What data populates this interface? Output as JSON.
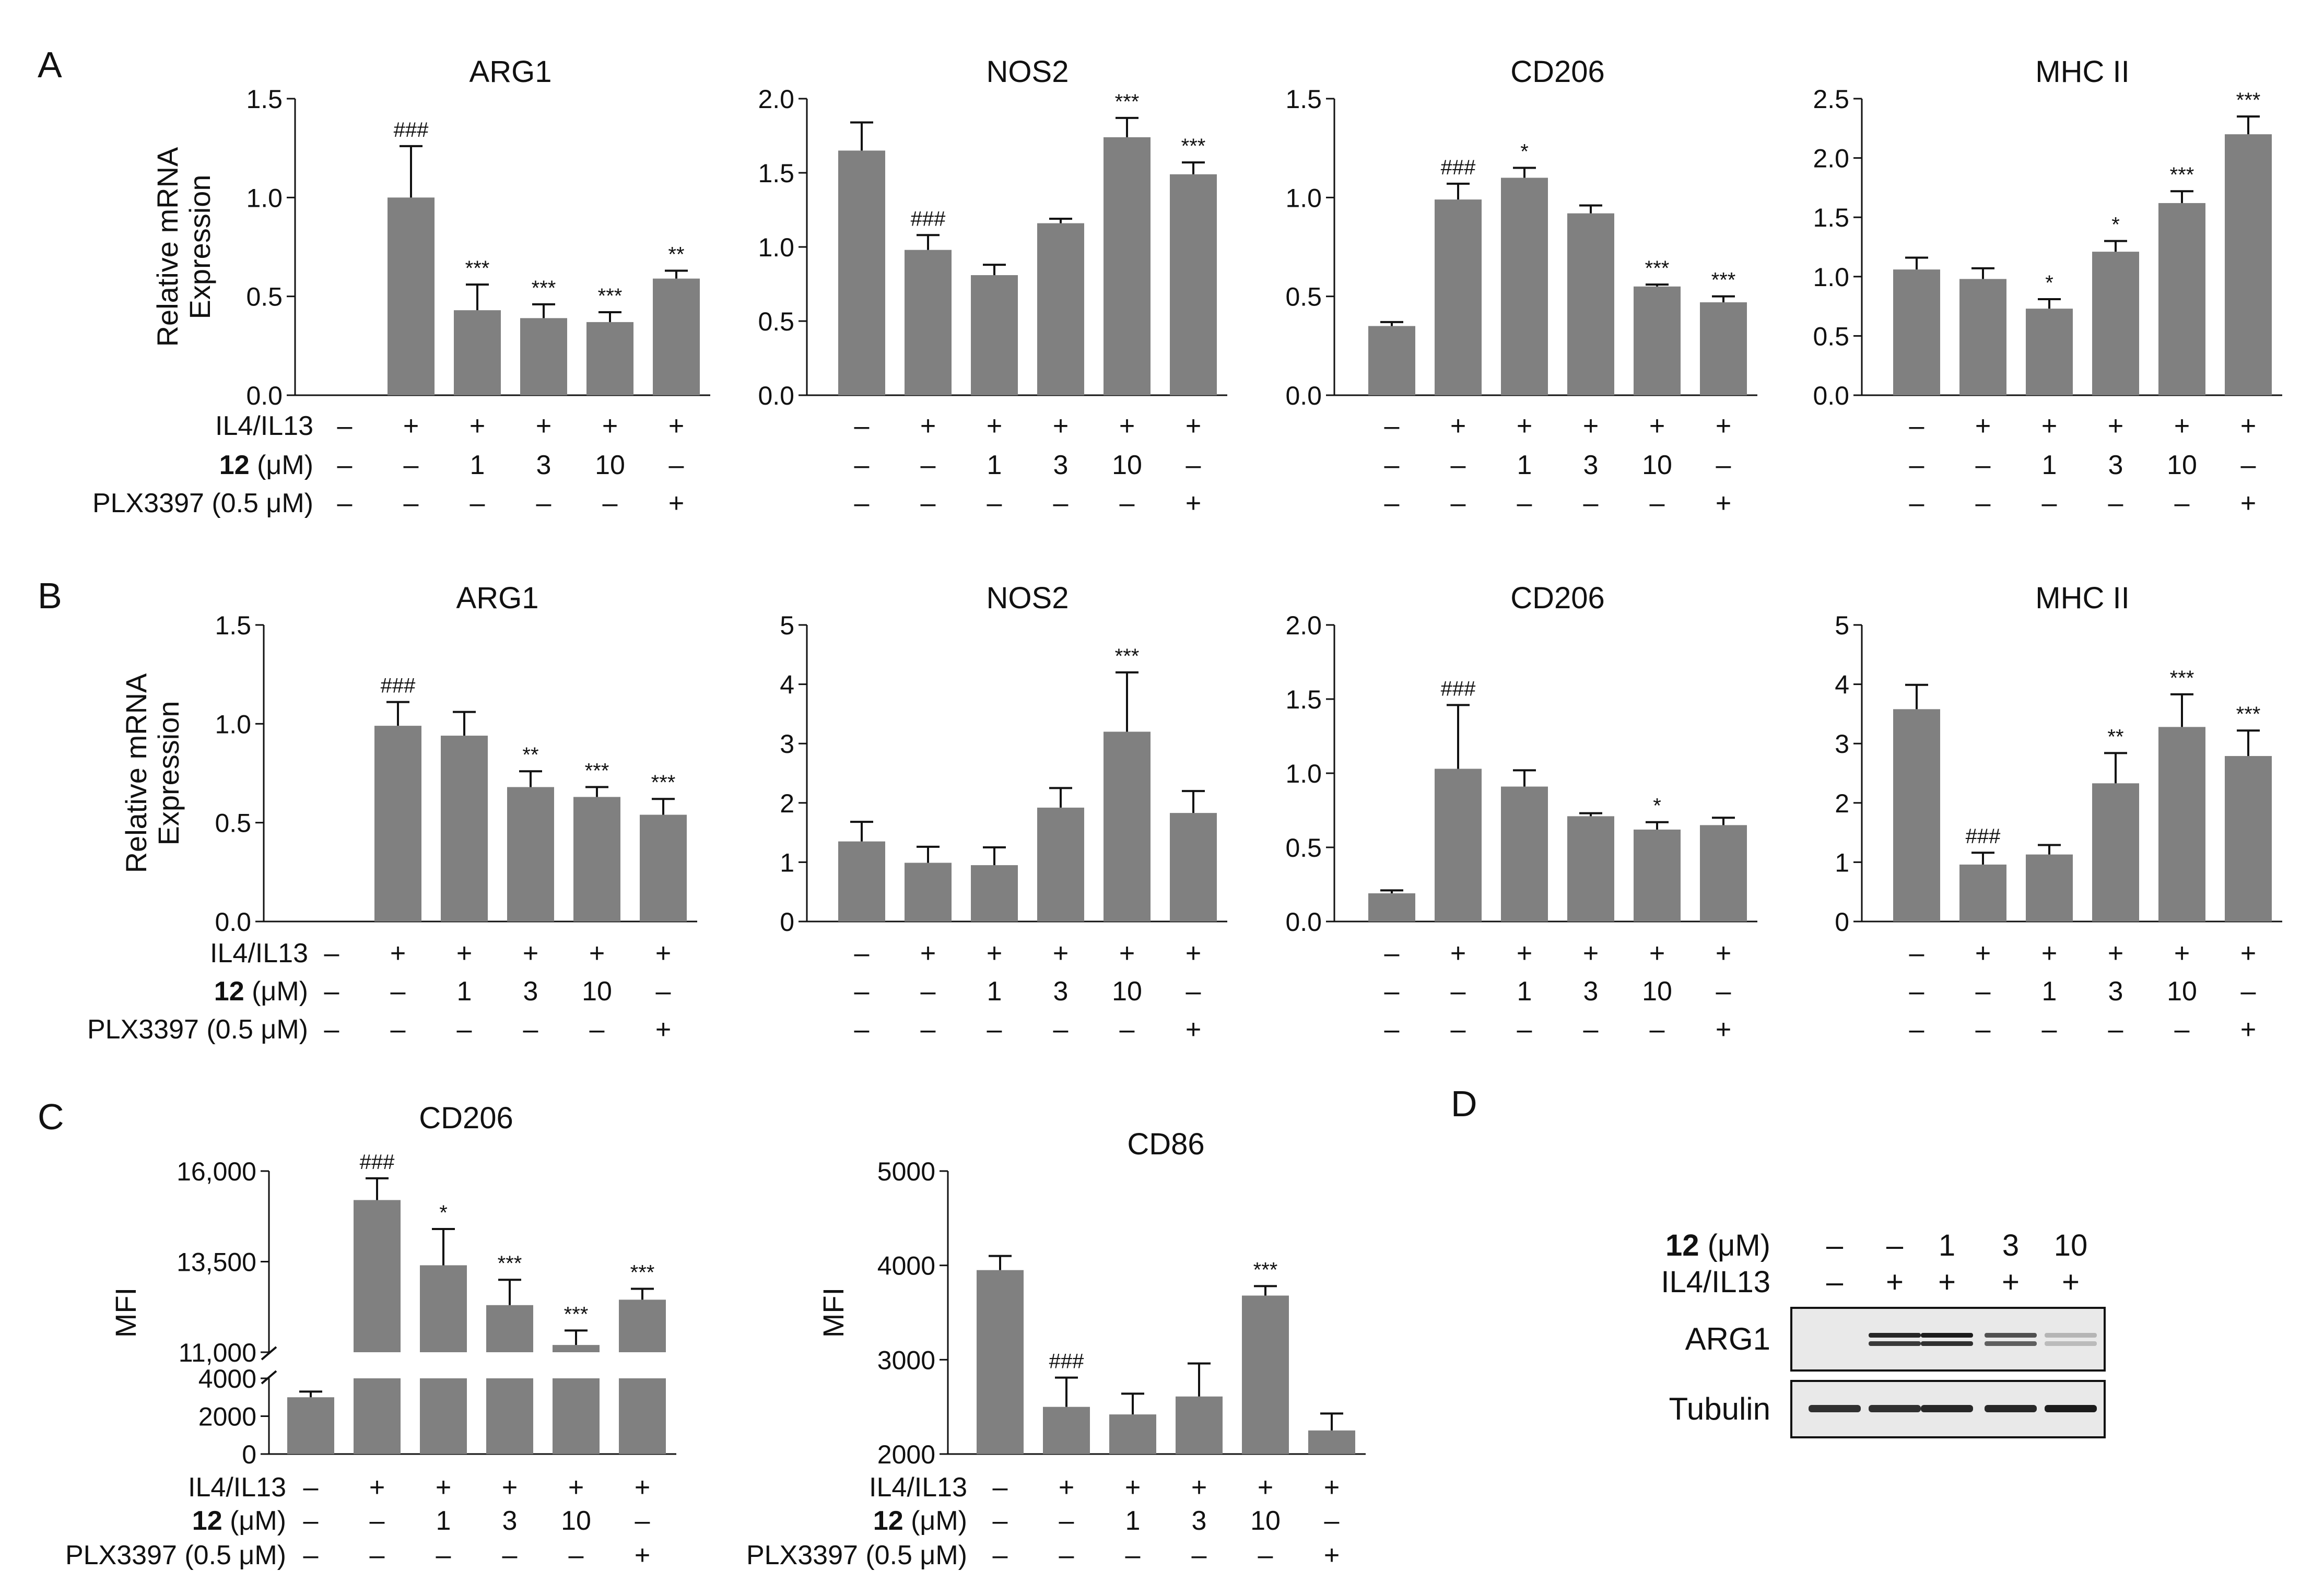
{
  "colors": {
    "bar": "#808080",
    "ink": "#111111",
    "blot_bg": "#e9e9e9",
    "band": "#1c1c1c"
  },
  "panel_labels": [
    "A",
    "B",
    "C",
    "D"
  ],
  "treatment_labels": {
    "il4": "IL4/IL13",
    "cmpd_num": "12",
    "cmpd_unit": " (μM)",
    "plx": "PLX3397 (0.5 μM)"
  },
  "conditions": {
    "il4": [
      "–",
      "+",
      "+",
      "+",
      "+",
      "+"
    ],
    "cmpd": [
      "–",
      "–",
      "1",
      "3",
      "10",
      "–"
    ],
    "plx": [
      "–",
      "–",
      "–",
      "–",
      "–",
      "+"
    ]
  },
  "chart_data": [
    {
      "id": "A1",
      "type": "bar",
      "title": "ARG1",
      "ylabel": [
        "Relative mRNA",
        "Expression"
      ],
      "ylim": [
        0,
        1.5
      ],
      "yticks": [
        "0.0",
        "0.5",
        "1.0",
        "1.5"
      ],
      "tickvals": [
        0,
        0.5,
        1.0,
        1.5
      ],
      "values": [
        0,
        1.0,
        0.43,
        0.39,
        0.37,
        0.59
      ],
      "errors": [
        0,
        0.26,
        0.13,
        0.07,
        0.05,
        0.04
      ],
      "sig": [
        "",
        "###",
        "***",
        "***",
        "***",
        "**"
      ]
    },
    {
      "id": "A2",
      "type": "bar",
      "title": "NOS2",
      "ylabel": [],
      "ylim": [
        0,
        2.0
      ],
      "yticks": [
        "0.0",
        "0.5",
        "1.0",
        "1.5",
        "2.0"
      ],
      "tickvals": [
        0,
        0.5,
        1.0,
        1.5,
        2.0
      ],
      "values": [
        1.65,
        0.98,
        0.81,
        1.16,
        1.74,
        1.49
      ],
      "errors": [
        0.19,
        0.1,
        0.07,
        0.03,
        0.13,
        0.08
      ],
      "sig": [
        "",
        "###",
        "",
        "",
        "***",
        "***"
      ]
    },
    {
      "id": "A3",
      "type": "bar",
      "title": "CD206",
      "ylabel": [],
      "ylim": [
        0,
        1.5
      ],
      "yticks": [
        "0.0",
        "0.5",
        "1.0",
        "1.5"
      ],
      "tickvals": [
        0,
        0.5,
        1.0,
        1.5
      ],
      "values": [
        0.35,
        0.99,
        1.1,
        0.92,
        0.55,
        0.47
      ],
      "errors": [
        0.02,
        0.08,
        0.05,
        0.04,
        0.01,
        0.03
      ],
      "sig": [
        "",
        "###",
        "*",
        "",
        "***",
        "***"
      ]
    },
    {
      "id": "A4",
      "type": "bar",
      "title": "MHC II",
      "ylabel": [],
      "ylim": [
        0,
        2.5
      ],
      "yticks": [
        "0.0",
        "0.5",
        "1.0",
        "1.5",
        "2.0",
        "2.5"
      ],
      "tickvals": [
        0,
        0.5,
        1.0,
        1.5,
        2.0,
        2.5
      ],
      "values": [
        1.06,
        0.98,
        0.73,
        1.21,
        1.62,
        2.2
      ],
      "errors": [
        0.1,
        0.09,
        0.08,
        0.09,
        0.1,
        0.15
      ],
      "sig": [
        "",
        "",
        "*",
        "*",
        "***",
        "***"
      ]
    },
    {
      "id": "B1",
      "type": "bar",
      "title": "ARG1",
      "ylabel": [
        "Relative mRNA",
        "Expression"
      ],
      "ylim": [
        0,
        1.5
      ],
      "yticks": [
        "0.0",
        "0.5",
        "1.0",
        "1.5"
      ],
      "tickvals": [
        0,
        0.5,
        1.0,
        1.5
      ],
      "values": [
        0,
        0.99,
        0.94,
        0.68,
        0.63,
        0.54
      ],
      "errors": [
        0,
        0.12,
        0.12,
        0.08,
        0.05,
        0.08
      ],
      "sig": [
        "",
        "###",
        "",
        "**",
        "***",
        "***"
      ]
    },
    {
      "id": "B2",
      "type": "bar",
      "title": "NOS2",
      "ylabel": [],
      "ylim": [
        0,
        5
      ],
      "yticks": [
        "0",
        "1",
        "2",
        "3",
        "4",
        "5"
      ],
      "tickvals": [
        0,
        1,
        2,
        3,
        4,
        5
      ],
      "values": [
        1.35,
        0.99,
        0.95,
        1.92,
        3.2,
        1.83
      ],
      "errors": [
        0.33,
        0.27,
        0.3,
        0.33,
        1.0,
        0.37
      ],
      "sig": [
        "",
        "",
        "",
        "",
        "***",
        ""
      ]
    },
    {
      "id": "B3",
      "type": "bar",
      "title": "CD206",
      "ylabel": [],
      "ylim": [
        0,
        2.0
      ],
      "yticks": [
        "0.0",
        "0.5",
        "1.0",
        "1.5",
        "2.0"
      ],
      "tickvals": [
        0,
        0.5,
        1.0,
        1.5,
        2.0
      ],
      "values": [
        0.19,
        1.03,
        0.91,
        0.71,
        0.62,
        0.65
      ],
      "errors": [
        0.02,
        0.43,
        0.11,
        0.02,
        0.05,
        0.05
      ],
      "sig": [
        "",
        "###",
        "",
        "",
        "*",
        ""
      ]
    },
    {
      "id": "B4",
      "type": "bar",
      "title": "MHC II",
      "ylabel": [],
      "ylim": [
        0,
        5
      ],
      "yticks": [
        "0",
        "1",
        "2",
        "3",
        "4",
        "5"
      ],
      "tickvals": [
        0,
        1,
        2,
        3,
        4,
        5
      ],
      "values": [
        3.58,
        0.96,
        1.13,
        2.33,
        3.28,
        2.79
      ],
      "errors": [
        0.41,
        0.2,
        0.16,
        0.51,
        0.55,
        0.43
      ],
      "sig": [
        "",
        "###",
        "",
        "**",
        "***",
        "***"
      ]
    },
    {
      "id": "C1",
      "type": "bar",
      "title": "CD206",
      "ylabel": [
        "MFI"
      ],
      "broken_axis": true,
      "ylim": [
        0,
        16000
      ],
      "lower_range": [
        0,
        4000
      ],
      "upper_range": [
        11000,
        16000
      ],
      "yticks": [
        "0",
        "2000",
        "4000",
        "11,000",
        "13,500",
        "16,000"
      ],
      "tickvals": [
        0,
        2000,
        4000,
        11000,
        13500,
        16000
      ],
      "values": [
        3000,
        15200,
        13400,
        12300,
        11200,
        12450
      ],
      "errors": [
        300,
        600,
        1000,
        700,
        400,
        300
      ],
      "sig": [
        "",
        "###",
        "*",
        "***",
        "***",
        "***"
      ]
    },
    {
      "id": "C2",
      "type": "bar",
      "title": "CD86",
      "ylabel": [
        "MFI"
      ],
      "ylim": [
        2000,
        5000
      ],
      "yticks": [
        "2000",
        "3000",
        "4000",
        "5000"
      ],
      "tickvals": [
        2000,
        3000,
        4000,
        5000
      ],
      "values": [
        3950,
        2500,
        2420,
        2610,
        3680,
        2250
      ],
      "errors": [
        150,
        310,
        220,
        350,
        100,
        180
      ],
      "sig": [
        "",
        "###",
        "",
        "",
        "***",
        ""
      ]
    }
  ],
  "blot": {
    "cmpd_row": [
      "–",
      "–",
      "1",
      "3",
      "10"
    ],
    "il4_row": [
      "–",
      "+",
      "+",
      "+",
      "+"
    ],
    "bands": [
      {
        "name": "ARG1",
        "intensity": [
          0,
          0.95,
          1.0,
          0.75,
          0.25
        ]
      },
      {
        "name": "Tubulin",
        "intensity": [
          0.9,
          0.9,
          0.95,
          0.95,
          1.0
        ]
      }
    ]
  }
}
